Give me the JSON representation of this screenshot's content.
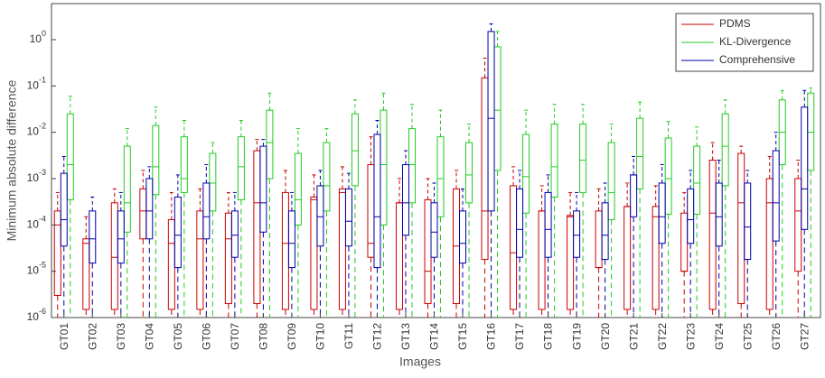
{
  "chart_data": {
    "type": "box",
    "log_y": true,
    "legend": "top-right",
    "xlabel": "Images",
    "ylabel": "Minimum absolute difference",
    "ylim": [
      1e-06,
      6
    ],
    "yticks": [
      {
        "value": 1e-06,
        "label": "10^-6"
      },
      {
        "value": 1e-05,
        "label": "10^-5"
      },
      {
        "value": 0.0001,
        "label": "10^-4"
      },
      {
        "value": 0.001,
        "label": "10^-3"
      },
      {
        "value": 0.01,
        "label": "10^-2"
      },
      {
        "value": 0.1,
        "label": "10^-1"
      },
      {
        "value": 1,
        "label": "10^0"
      }
    ],
    "categories": [
      "GT01",
      "GT02",
      "GT03",
      "GT04",
      "GT05",
      "GT06",
      "GT07",
      "GT08",
      "GT09",
      "GT10",
      "GT11",
      "GT12",
      "GT13",
      "GT14",
      "GT15",
      "GT16",
      "GT17",
      "GT18",
      "GT19",
      "GT20",
      "GT21",
      "GT22",
      "GT23",
      "GT24",
      "GT25",
      "GT26",
      "GT27"
    ],
    "series": [
      {
        "name": "PDMS",
        "color": "#cc0000",
        "offset": -7,
        "whisker_low": [
          1e-07,
          1e-07,
          1e-07,
          1e-07,
          1e-07,
          1e-07,
          1e-07,
          1e-07,
          1e-07,
          1e-07,
          1e-07,
          1e-07,
          1e-07,
          1e-07,
          1e-07,
          1e-07,
          1e-07,
          1e-07,
          1e-07,
          1e-07,
          1e-07,
          1e-07,
          1e-07,
          1e-07,
          1e-07,
          1e-07,
          1e-07
        ],
        "q1": [
          3e-06,
          1.5e-06,
          1.5e-06,
          5e-05,
          1.5e-06,
          1.5e-06,
          2e-06,
          2e-06,
          1.5e-06,
          1.5e-06,
          1.5e-06,
          2e-05,
          1.5e-06,
          2e-06,
          2e-06,
          1.8e-05,
          1.5e-06,
          1.5e-06,
          1.5e-06,
          1.2e-05,
          1.5e-06,
          1.5e-06,
          1e-05,
          1.5e-06,
          2e-06,
          1.5e-06,
          1e-05
        ],
        "median": [
          0.0001,
          4e-05,
          2e-05,
          0.0002,
          4e-05,
          5e-05,
          5e-05,
          0.0003,
          4e-05,
          0.00035,
          0.0005,
          4e-05,
          0.0003,
          1e-05,
          3.5e-05,
          0.0002,
          2.5e-05,
          0.0002,
          0.00015,
          1.2e-05,
          0.00025,
          0.00015,
          1e-05,
          0.00018,
          0.0003,
          0.0003,
          0.0002
        ],
        "q3": [
          0.0002,
          5e-05,
          0.0003,
          0.0006,
          0.00013,
          0.0002,
          0.00018,
          0.004,
          0.0005,
          0.0004,
          0.0006,
          0.002,
          0.0003,
          0.00035,
          0.0006,
          0.15,
          0.0007,
          0.0002,
          0.00016,
          0.0002,
          0.00025,
          0.00025,
          0.00018,
          0.0025,
          0.0035,
          0.001,
          0.001
        ],
        "whisker_high": [
          0.0005,
          0.00015,
          0.0006,
          0.0015,
          0.0005,
          0.0006,
          0.0005,
          0.007,
          0.0015,
          0.0012,
          0.0018,
          0.008,
          0.001,
          0.001,
          0.0015,
          0.4,
          0.0018,
          0.0007,
          0.0005,
          0.0006,
          0.0008,
          0.0007,
          0.0005,
          0.006,
          0.005,
          0.003,
          0.0025
        ]
      },
      {
        "name": "KL-Divergence",
        "color": "#22cc22",
        "offset": 7,
        "whisker_low": [
          1e-07,
          null,
          1e-07,
          1e-07,
          1e-07,
          1e-07,
          1e-07,
          1e-07,
          1e-07,
          1e-07,
          1e-07,
          1e-07,
          1e-07,
          1e-07,
          1e-07,
          1e-07,
          1e-07,
          1e-07,
          1e-07,
          1e-07,
          1e-07,
          1e-07,
          1e-07,
          1e-07,
          null,
          1e-07,
          1e-07
        ],
        "q1": [
          0.00035,
          null,
          7e-05,
          0.00045,
          0.0005,
          0.0002,
          0.00035,
          0.001,
          0.0001,
          0.0002,
          0.0007,
          0.0001,
          0.0003,
          0.00015,
          0.0003,
          0.0015,
          0.00018,
          0.0004,
          0.0005,
          0.00013,
          0.0006,
          0.00017,
          0.00017,
          0.0007,
          null,
          0.002,
          0.0015
        ],
        "median": [
          0.002,
          null,
          0.0003,
          0.0018,
          0.001,
          0.0008,
          0.0018,
          0.006,
          0.00035,
          0.0007,
          0.004,
          0.002,
          0.002,
          0.001,
          0.0012,
          0.03,
          0.0011,
          0.0018,
          0.0025,
          0.0005,
          0.003,
          0.001,
          0.0008,
          0.005,
          null,
          0.01,
          0.01
        ],
        "q3": [
          0.025,
          null,
          0.005,
          0.014,
          0.008,
          0.0035,
          0.008,
          0.03,
          0.0035,
          0.006,
          0.025,
          0.03,
          0.012,
          0.008,
          0.006,
          0.7,
          0.009,
          0.015,
          0.015,
          0.006,
          0.02,
          0.0075,
          0.005,
          0.025,
          null,
          0.05,
          0.07
        ],
        "whisker_high": [
          0.06,
          null,
          0.012,
          0.035,
          0.018,
          0.006,
          0.018,
          0.07,
          0.012,
          0.012,
          0.05,
          0.07,
          0.04,
          0.03,
          0.015,
          1.5,
          0.03,
          0.04,
          0.04,
          0.015,
          0.045,
          0.017,
          0.013,
          0.05,
          null,
          0.08,
          0.09
        ]
      },
      {
        "name": "Comprehensive",
        "color": "#0000aa",
        "offset": 0,
        "whisker_low": [
          1e-07,
          1e-07,
          1e-07,
          1e-07,
          1e-07,
          1e-07,
          1e-07,
          1e-07,
          1e-07,
          1e-07,
          1e-07,
          1e-07,
          1e-07,
          1e-07,
          1e-07,
          1e-07,
          1e-07,
          1e-07,
          1e-07,
          1e-07,
          1e-07,
          1e-07,
          1e-07,
          1e-07,
          1e-07,
          1e-07,
          1e-07
        ],
        "q1": [
          3.5e-05,
          1.5e-05,
          1.5e-05,
          5e-05,
          1.2e-05,
          5e-05,
          2e-05,
          7e-05,
          1.2e-05,
          3.5e-05,
          3.5e-05,
          1.2e-05,
          6e-05,
          2e-05,
          1.5e-05,
          0.0002,
          2e-05,
          2e-05,
          2e-05,
          1.8e-05,
          0.00015,
          4e-05,
          4e-05,
          3.5e-05,
          1.8e-05,
          4.5e-05,
          8e-05
        ],
        "median": [
          0.00013,
          5e-05,
          5e-05,
          0.0002,
          6e-05,
          0.00015,
          6e-05,
          0.0003,
          4e-05,
          0.00015,
          0.00012,
          0.00015,
          0.0003,
          7e-05,
          4e-05,
          0.02,
          8e-05,
          8e-05,
          6e-05,
          6e-05,
          0.0012,
          0.00015,
          0.00013,
          0.00015,
          9e-05,
          0.0003,
          0.0006
        ],
        "q3": [
          0.0013,
          0.0002,
          0.0002,
          0.001,
          0.0004,
          0.0008,
          0.0002,
          0.005,
          0.0002,
          0.0007,
          0.0006,
          0.009,
          0.002,
          0.0003,
          0.0002,
          1.5,
          0.0006,
          0.0005,
          0.0002,
          0.0003,
          0.0012,
          0.0008,
          0.0006,
          0.0008,
          0.0008,
          0.004,
          0.035
        ],
        "whisker_high": [
          0.003,
          0.0004,
          0.0005,
          0.0018,
          0.0012,
          0.002,
          0.0005,
          0.007,
          0.0005,
          0.0015,
          0.0013,
          0.018,
          0.004,
          0.0008,
          0.0006,
          2.2,
          0.0015,
          0.0012,
          0.0005,
          0.0008,
          0.003,
          0.002,
          0.0015,
          0.0025,
          0.0015,
          0.01,
          0.08
        ]
      }
    ]
  }
}
